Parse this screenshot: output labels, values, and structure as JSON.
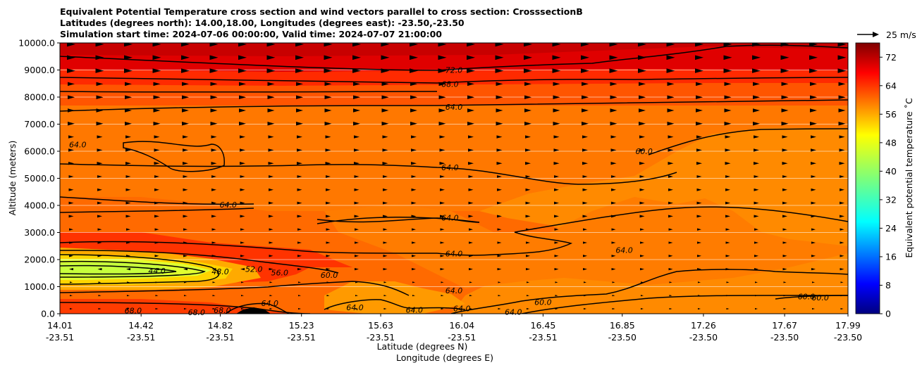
{
  "chart_data": {
    "type": "contour",
    "title_lines": [
      "Equivalent Potential Temperature cross section and wind vectors parallel to cross section: CrosssectionB",
      "Latitudes (degrees north): 14.00,18.00, Longitudes (degrees east): -23.50,-23.50",
      "Simulation start time: 2024-07-06 00:00:00, Valid time: 2024-07-07 21:00:00"
    ],
    "ylabel": "Altitude (meters)",
    "xlabel_lines": [
      "Latitude (degrees N)",
      "Longitude (degrees E)"
    ],
    "ylim": [
      0,
      10000
    ],
    "xlim": [
      14.01,
      17.99
    ],
    "y_ticks": [
      "0.0",
      "1000.0",
      "2000.0",
      "3000.0",
      "4000.0",
      "5000.0",
      "6000.0",
      "7000.0",
      "8000.0",
      "9000.0",
      "10000.0"
    ],
    "x_ticks": [
      {
        "lat": "14.01",
        "lon": "-23.51"
      },
      {
        "lat": "14.42",
        "lon": "-23.51"
      },
      {
        "lat": "14.82",
        "lon": "-23.51"
      },
      {
        "lat": "15.23",
        "lon": "-23.51"
      },
      {
        "lat": "15.63",
        "lon": "-23.51"
      },
      {
        "lat": "16.04",
        "lon": "-23.51"
      },
      {
        "lat": "16.45",
        "lon": "-23.51"
      },
      {
        "lat": "16.85",
        "lon": "-23.50"
      },
      {
        "lat": "17.26",
        "lon": "-23.50"
      },
      {
        "lat": "17.67",
        "lon": "-23.50"
      },
      {
        "lat": "17.99",
        "lon": "-23.50"
      }
    ],
    "colorbar": {
      "label": "Equivalent potential temperature ˚C",
      "range": [
        0,
        76
      ],
      "ticks": [
        "0",
        "8",
        "16",
        "24",
        "32",
        "40",
        "48",
        "56",
        "64",
        "72"
      ]
    },
    "quiver_key": "25 m/s",
    "contour_labels": [
      {
        "text": "72.0",
        "lat": 16.0,
        "alt": 9000
      },
      {
        "text": "68.0",
        "lat": 15.98,
        "alt": 8480
      },
      {
        "text": "64.0",
        "lat": 16.0,
        "alt": 7640
      },
      {
        "text": "64.0",
        "lat": 14.1,
        "alt": 6250
      },
      {
        "text": "60.0",
        "lat": 16.96,
        "alt": 6000
      },
      {
        "text": "64.0",
        "lat": 15.98,
        "alt": 5400
      },
      {
        "text": "64.0",
        "lat": 14.86,
        "alt": 4030
      },
      {
        "text": "64.0",
        "lat": 15.98,
        "alt": 3540
      },
      {
        "text": "64.0",
        "lat": 16.86,
        "alt": 2350
      },
      {
        "text": "64.0",
        "lat": 16.0,
        "alt": 2220
      },
      {
        "text": "44.0",
        "lat": 14.5,
        "alt": 1590
      },
      {
        "text": "48.0",
        "lat": 14.82,
        "alt": 1560
      },
      {
        "text": "52.0",
        "lat": 14.99,
        "alt": 1650
      },
      {
        "text": "56.0",
        "lat": 15.12,
        "alt": 1520
      },
      {
        "text": "60.0",
        "lat": 15.37,
        "alt": 1430
      },
      {
        "text": "64.0",
        "lat": 16.0,
        "alt": 860
      },
      {
        "text": "64.0",
        "lat": 15.5,
        "alt": 230
      },
      {
        "text": "64.0",
        "lat": 15.8,
        "alt": 140
      },
      {
        "text": "64.0",
        "lat": 16.04,
        "alt": 190
      },
      {
        "text": "64.0",
        "lat": 16.3,
        "alt": 60
      },
      {
        "text": "60.0",
        "lat": 16.45,
        "alt": 430
      },
      {
        "text": "60.0",
        "lat": 17.85,
        "alt": 600
      },
      {
        "text": "60.0",
        "lat": 17.78,
        "alt": 630
      },
      {
        "text": "68.0",
        "lat": 14.38,
        "alt": 120
      },
      {
        "text": "68.0",
        "lat": 14.7,
        "alt": 50
      },
      {
        "text": "68.0",
        "lat": 14.83,
        "alt": 130
      },
      {
        "text": "64.0",
        "lat": 15.07,
        "alt": 390
      }
    ]
  }
}
